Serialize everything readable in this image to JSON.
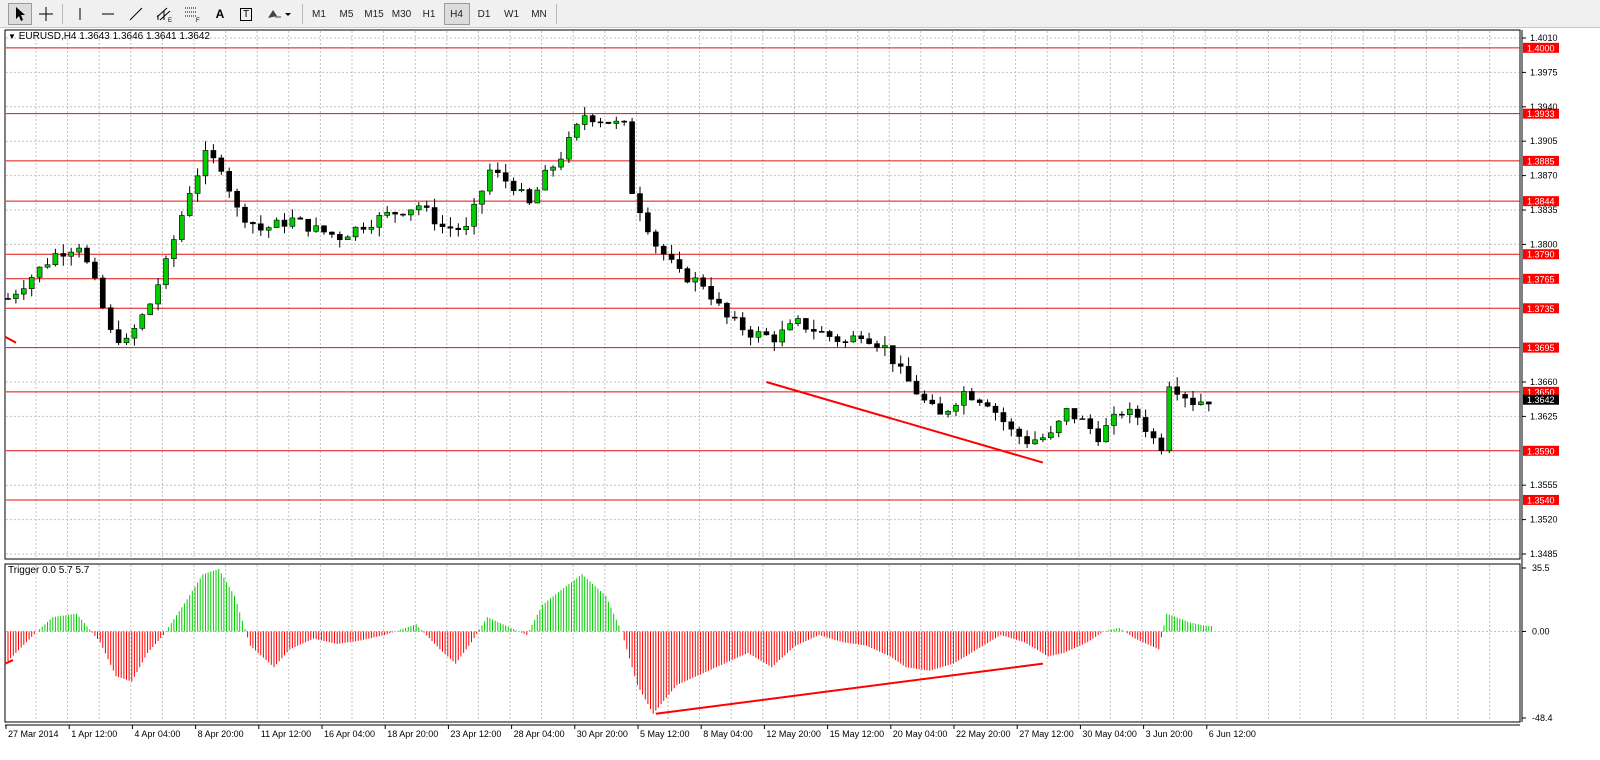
{
  "toolbar": {
    "tools": [
      {
        "name": "cursor-icon"
      },
      {
        "name": "crosshair-icon"
      },
      {
        "name": "vertical-line-icon"
      },
      {
        "name": "horizontal-line-icon"
      },
      {
        "name": "trendline-icon"
      },
      {
        "name": "equidistant-channel-icon"
      },
      {
        "name": "fibonacci-retracement-icon"
      },
      {
        "name": "text-icon",
        "label": "A"
      },
      {
        "name": "text-label-icon",
        "label": "T"
      },
      {
        "name": "shapes-dropdown-icon"
      }
    ],
    "timeframes": [
      "M1",
      "M5",
      "M15",
      "M30",
      "H1",
      "H4",
      "D1",
      "W1",
      "MN"
    ],
    "active_timeframe": "H4"
  },
  "chart": {
    "header": "EURUSD,H4  1.3643 1.3646 1.3641 1.3642",
    "symbol": "EURUSD",
    "period": "H4",
    "ohlc": {
      "open": "1.3643",
      "high": "1.3646",
      "low": "1.3641",
      "close": "1.3642"
    },
    "indicator_header": "Trigger 0.0 5.7 5.7",
    "colors": {
      "bull_body": "#00cc00",
      "bear_body": "#000000",
      "wick": "#000000",
      "level_line": "#e01010",
      "level_tag_bg": "#ff0000",
      "current_tag_bg": "#000000",
      "hist_positive": "#00cc00",
      "hist_negative": "#ff0000",
      "grid": "#c0c0c0"
    }
  },
  "chart_data": [
    {
      "type": "candlestick",
      "title": "EURUSD,H4",
      "y_ticks": [
        "1.4010",
        "1.3975",
        "1.3940",
        "1.3905",
        "1.3870",
        "1.3835",
        "1.3800",
        "1.3660",
        "1.3625",
        "1.3555",
        "1.3520",
        "1.3485"
      ],
      "ylim": [
        1.3485,
        1.401
      ],
      "x_ticks": [
        "27 Mar 2014",
        "1 Apr 12:00",
        "4 Apr 04:00",
        "8 Apr 20:00",
        "11 Apr 12:00",
        "16 Apr 04:00",
        "18 Apr 20:00",
        "23 Apr 12:00",
        "28 Apr 04:00",
        "30 Apr 20:00",
        "5 May 12:00",
        "8 May 04:00",
        "12 May 20:00",
        "15 May 12:00",
        "20 May 04:00",
        "22 May 20:00",
        "27 May 12:00",
        "30 May 04:00",
        "3 Jun 20:00",
        "6 Jun 12:00"
      ],
      "horizontal_levels": [
        "1.4000",
        "1.3933",
        "1.3885",
        "1.3844",
        "1.3790",
        "1.3765",
        "1.3735",
        "1.3695",
        "1.3650",
        "1.3590",
        "1.3540"
      ],
      "current_price": "1.3642",
      "close_path": [
        [
          0,
          1.3745
        ],
        [
          6,
          1.379
        ],
        [
          9,
          1.38
        ],
        [
          11,
          1.376
        ],
        [
          13,
          1.371
        ],
        [
          15,
          1.37
        ],
        [
          18,
          1.374
        ],
        [
          20,
          1.378
        ],
        [
          23,
          1.3855
        ],
        [
          25,
          1.389
        ],
        [
          27,
          1.388
        ],
        [
          29,
          1.3835
        ],
        [
          32,
          1.3815
        ],
        [
          36,
          1.3825
        ],
        [
          39,
          1.3815
        ],
        [
          42,
          1.3808
        ],
        [
          45,
          1.382
        ],
        [
          48,
          1.383
        ],
        [
          52,
          1.384
        ],
        [
          55,
          1.3818
        ],
        [
          58,
          1.3815
        ],
        [
          61,
          1.3875
        ],
        [
          64,
          1.386
        ],
        [
          66,
          1.384
        ],
        [
          68,
          1.387
        ],
        [
          70,
          1.389
        ],
        [
          73,
          1.3932
        ],
        [
          76,
          1.3925
        ],
        [
          78,
          1.392
        ],
        [
          79,
          1.3855
        ],
        [
          82,
          1.38
        ],
        [
          85,
          1.377
        ],
        [
          88,
          1.376
        ],
        [
          91,
          1.3725
        ],
        [
          94,
          1.371
        ],
        [
          97,
          1.3705
        ],
        [
          100,
          1.372
        ],
        [
          103,
          1.371
        ],
        [
          106,
          1.37
        ],
        [
          108,
          1.371
        ],
        [
          111,
          1.3695
        ],
        [
          113,
          1.367
        ],
        [
          116,
          1.364
        ],
        [
          118,
          1.3625
        ],
        [
          121,
          1.365
        ],
        [
          124,
          1.364
        ],
        [
          127,
          1.361
        ],
        [
          129,
          1.36
        ],
        [
          132,
          1.3605
        ],
        [
          134,
          1.363
        ],
        [
          136,
          1.362
        ],
        [
          138,
          1.3605
        ],
        [
          141,
          1.363
        ],
        [
          143,
          1.3625
        ],
        [
          145,
          1.3602
        ],
        [
          146,
          1.3595
        ],
        [
          147,
          1.366
        ],
        [
          150,
          1.364
        ],
        [
          152,
          1.3642
        ]
      ],
      "annotations": [
        {
          "type": "trendline",
          "from": {
            "x": "12 May 20:00",
            "y": 1.366
          },
          "to": {
            "x": "27 May 12:00",
            "y": 1.3578
          }
        }
      ]
    },
    {
      "type": "histogram",
      "title": "Trigger",
      "y_ticks": [
        "35.5",
        "0.00",
        "-48.4"
      ],
      "ylim": [
        -48.4,
        35.5
      ],
      "values_path": [
        [
          0,
          -18
        ],
        [
          4,
          0
        ],
        [
          6,
          8
        ],
        [
          9,
          10
        ],
        [
          12,
          -6
        ],
        [
          14,
          -25
        ],
        [
          16,
          -28
        ],
        [
          18,
          -12
        ],
        [
          20,
          -2
        ],
        [
          23,
          18
        ],
        [
          25,
          32
        ],
        [
          27,
          35
        ],
        [
          29,
          20
        ],
        [
          31,
          -8
        ],
        [
          34,
          -20
        ],
        [
          36,
          -10
        ],
        [
          39,
          -4
        ],
        [
          42,
          -7
        ],
        [
          45,
          -5
        ],
        [
          48,
          -2
        ],
        [
          52,
          4
        ],
        [
          55,
          -10
        ],
        [
          57,
          -18
        ],
        [
          59,
          -6
        ],
        [
          61,
          8
        ],
        [
          64,
          2
        ],
        [
          66,
          -2
        ],
        [
          68,
          15
        ],
        [
          70,
          22
        ],
        [
          73,
          32
        ],
        [
          76,
          20
        ],
        [
          78,
          0
        ],
        [
          80,
          -30
        ],
        [
          82,
          -46
        ],
        [
          85,
          -30
        ],
        [
          88,
          -24
        ],
        [
          91,
          -18
        ],
        [
          94,
          -12
        ],
        [
          97,
          -20
        ],
        [
          100,
          -8
        ],
        [
          103,
          -2
        ],
        [
          106,
          -6
        ],
        [
          109,
          -8
        ],
        [
          112,
          -14
        ],
        [
          114,
          -20
        ],
        [
          117,
          -22
        ],
        [
          120,
          -18
        ],
        [
          123,
          -10
        ],
        [
          126,
          -2
        ],
        [
          129,
          -6
        ],
        [
          132,
          -14
        ],
        [
          134,
          -12
        ],
        [
          137,
          -6
        ],
        [
          139,
          0
        ],
        [
          141,
          2
        ],
        [
          143,
          -4
        ],
        [
          145,
          -8
        ],
        [
          146,
          -10
        ],
        [
          147,
          10
        ],
        [
          150,
          5
        ],
        [
          152,
          3
        ]
      ],
      "annotations": [
        {
          "type": "trendline",
          "from": {
            "x": "8 May 04:00",
            "y": -46
          },
          "to": {
            "x": "27 May 12:00",
            "y": -18
          }
        }
      ]
    }
  ]
}
